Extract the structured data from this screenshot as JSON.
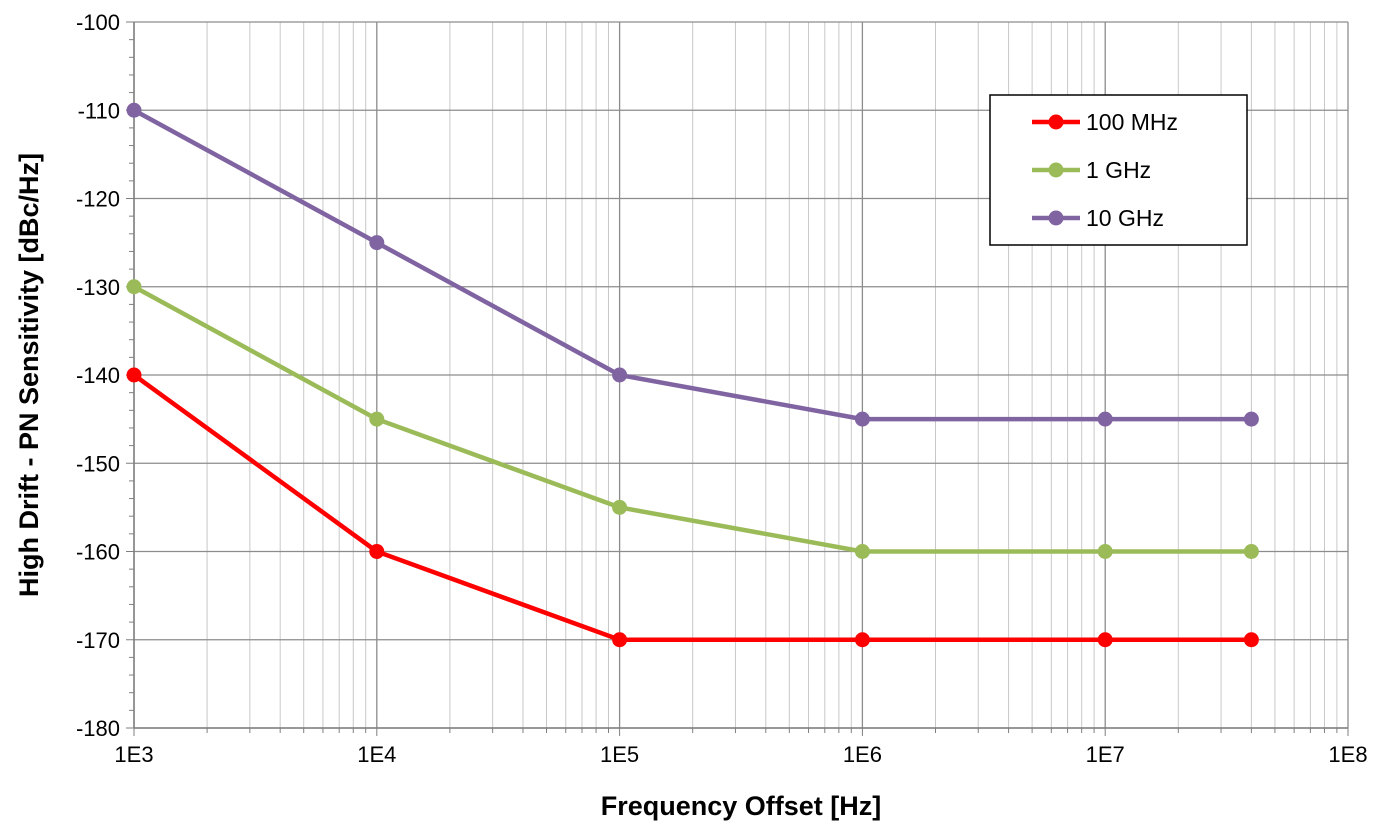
{
  "chart_data": {
    "type": "line",
    "title": "",
    "xlabel": "Frequency Offset [Hz]",
    "ylabel": "High Drift - PN Sensitivity [dBc/Hz]",
    "x_scale": "log",
    "xlim": [
      1000,
      100000000
    ],
    "ylim": [
      -180,
      -100
    ],
    "x_ticks": [
      {
        "value": 1000,
        "label": "1E3"
      },
      {
        "value": 10000,
        "label": "1E4"
      },
      {
        "value": 100000,
        "label": "1E5"
      },
      {
        "value": 1000000,
        "label": "1E6"
      },
      {
        "value": 10000000,
        "label": "1E7"
      },
      {
        "value": 100000000,
        "label": "1E8"
      }
    ],
    "y_ticks": [
      {
        "value": -100,
        "label": "-100"
      },
      {
        "value": -110,
        "label": "-110"
      },
      {
        "value": -120,
        "label": "-120"
      },
      {
        "value": -130,
        "label": "-130"
      },
      {
        "value": -140,
        "label": "-140"
      },
      {
        "value": -150,
        "label": "-150"
      },
      {
        "value": -160,
        "label": "-160"
      },
      {
        "value": -170,
        "label": "-170"
      },
      {
        "value": -180,
        "label": "-180"
      }
    ],
    "grid": true,
    "legend_position": "top-right",
    "x": [
      1000,
      10000,
      100000,
      1000000,
      10000000,
      40000000
    ],
    "series": [
      {
        "name": "100 MHz",
        "color": "#ff0000",
        "values": [
          -140,
          -160,
          -170,
          -170,
          -170,
          -170
        ]
      },
      {
        "name": "1 GHz",
        "color": "#9bbb59",
        "values": [
          -130,
          -145,
          -155,
          -160,
          -160,
          -160
        ]
      },
      {
        "name": "10 GHz",
        "color": "#8064a2",
        "values": [
          -110,
          -125,
          -140,
          -145,
          -145,
          -145
        ]
      }
    ]
  }
}
